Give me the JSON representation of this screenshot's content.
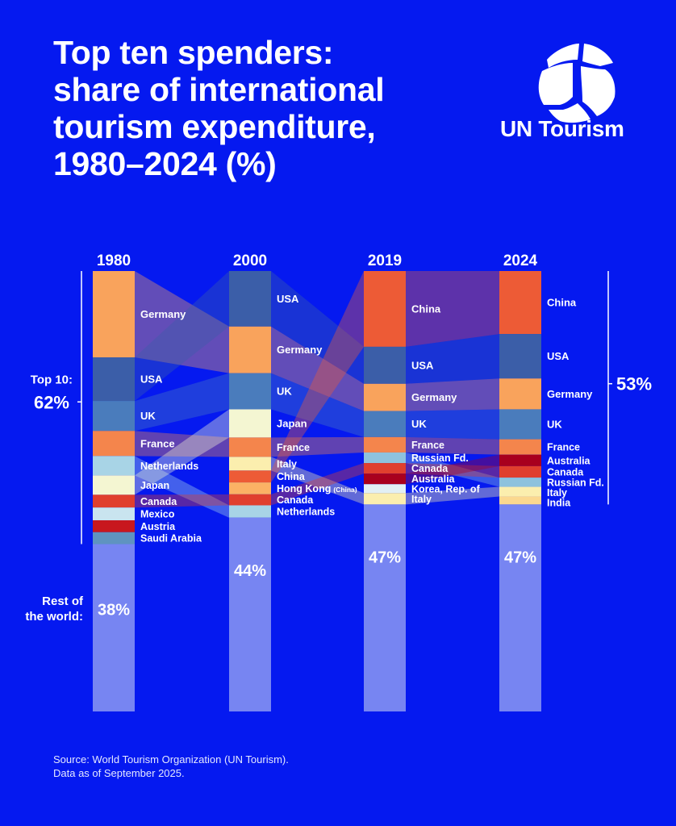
{
  "header": {
    "title_lines": [
      "Top ten spenders:",
      "share of international",
      "tourism expenditure,",
      "1980–2024 (%)"
    ],
    "logo_text": "UN Tourism"
  },
  "footer": {
    "source_lines": [
      "Source: World Tourism Organization (UN Tourism).",
      "Data as of September 2025."
    ]
  },
  "colors": {
    "background": "#0519f0",
    "rest_of_world": "#7785f2",
    "Germany": "#f9a35c",
    "USA": "#3b5ea8",
    "UK": "#4a7cbc",
    "France": "#f4854c",
    "Netherlands": "#a8d4e6",
    "Japan": "#f4f6d2",
    "Canada": "#e03f2e",
    "Mexico": "#c9e4ef",
    "Austria": "#c8171e",
    "Saudi Arabia": "#5f93c0",
    "Italy": "#fbeeae",
    "China": "#ed5b36",
    "Hong Kong": "#fbb265",
    "Russian Fd.": "#8ec2dd",
    "Australia": "#a8001e",
    "Korea, Rep. of": "#e2eff4",
    "India": "#fbd88f"
  },
  "chart_data": {
    "type": "bar",
    "stacked": true,
    "title": "Top ten spenders: share of international tourism expenditure, 1980–2024 (%)",
    "xlabel": "",
    "ylabel": "",
    "ylim": [
      0,
      100
    ],
    "grid": false,
    "categories": [
      "1980",
      "2000",
      "2019",
      "2024"
    ],
    "columns": [
      {
        "year": "1980",
        "segments": [
          {
            "name": "Germany",
            "label": "Germany",
            "value": 19.6
          },
          {
            "name": "USA",
            "label": "USA",
            "value": 9.9
          },
          {
            "name": "UK",
            "label": "UK",
            "value": 6.8
          },
          {
            "name": "France",
            "label": "France",
            "value": 5.7
          },
          {
            "name": "Netherlands",
            "label": "Netherlands",
            "value": 4.4
          },
          {
            "name": "Japan",
            "label": "Japan",
            "value": 4.4
          },
          {
            "name": "Canada",
            "label": "Canada",
            "value": 2.9
          },
          {
            "name": "Mexico",
            "label": "Mexico",
            "value": 2.9
          },
          {
            "name": "Austria",
            "label": "Austria",
            "value": 2.7
          },
          {
            "name": "Saudi Arabia",
            "label": "Saudi Arabia",
            "value": 2.7
          }
        ],
        "rest": 38,
        "rest_label": "38%"
      },
      {
        "year": "2000",
        "segments": [
          {
            "name": "USA",
            "label": "USA",
            "value": 12.6
          },
          {
            "name": "Germany",
            "label": "Germany",
            "value": 10.6
          },
          {
            "name": "UK",
            "label": "UK",
            "value": 8.2
          },
          {
            "name": "Japan",
            "label": "Japan",
            "value": 6.4
          },
          {
            "name": "France",
            "label": "France",
            "value": 4.4
          },
          {
            "name": "Italy",
            "label": "Italy",
            "value": 3.1
          },
          {
            "name": "China",
            "label": "China",
            "value": 2.7
          },
          {
            "name": "Hong Kong",
            "label": "Hong Kong",
            "label_suffix": "(China)",
            "value": 2.7
          },
          {
            "name": "Canada",
            "label": "Canada",
            "value": 2.5
          },
          {
            "name": "Netherlands",
            "label": "Netherlands",
            "value": 2.8
          }
        ],
        "rest": 44,
        "rest_label": "44%"
      },
      {
        "year": "2019",
        "segments": [
          {
            "name": "China",
            "label": "China",
            "value": 17.2
          },
          {
            "name": "USA",
            "label": "USA",
            "value": 8.4
          },
          {
            "name": "Germany",
            "label": "Germany",
            "value": 6.2
          },
          {
            "name": "UK",
            "label": "UK",
            "value": 5.9
          },
          {
            "name": "France",
            "label": "France",
            "value": 3.5
          },
          {
            "name": "Russian Fd.",
            "label": "Russian Fd.",
            "value": 2.4
          },
          {
            "name": "Canada",
            "label": "Canada",
            "value": 2.4
          },
          {
            "name": "Australia",
            "label": "Australia",
            "value": 2.4
          },
          {
            "name": "Korea, Rep. of",
            "label": "Korea, Rep. of",
            "value": 2.0
          },
          {
            "name": "Italy",
            "label": "Italy",
            "value": 2.6
          }
        ],
        "rest": 47,
        "rest_label": "47%"
      },
      {
        "year": "2024",
        "segments": [
          {
            "name": "China",
            "label": "China",
            "value": 14.3
          },
          {
            "name": "USA",
            "label": "USA",
            "value": 10.1
          },
          {
            "name": "Germany",
            "label": "Germany",
            "value": 7.0
          },
          {
            "name": "UK",
            "label": "UK",
            "value": 6.8
          },
          {
            "name": "France",
            "label": "France",
            "value": 3.5
          },
          {
            "name": "Australia",
            "label": "Australia",
            "value": 2.6
          },
          {
            "name": "Canada",
            "label": "Canada",
            "value": 2.6
          },
          {
            "name": "Russian Fd.",
            "label": "Russian Fd.",
            "value": 2.1
          },
          {
            "name": "Italy",
            "label": "Italy",
            "value": 2.2
          },
          {
            "name": "India",
            "label": "India",
            "value": 1.8
          }
        ],
        "rest": 47,
        "rest_label": "47%"
      }
    ],
    "annotations": {
      "top10_label": "Top 10:",
      "top10_1980": "62%",
      "top10_2024": "53%",
      "rest_label_lines": [
        "Rest of",
        "the world:"
      ]
    }
  }
}
